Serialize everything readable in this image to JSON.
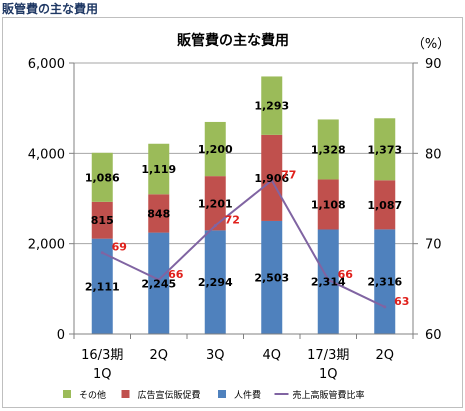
{
  "page_heading": "販管費の主な費用",
  "chart_data": {
    "type": "bar",
    "stacked": true,
    "title": "販管費の主な費用",
    "y2_unit": "（%）",
    "categories": [
      [
        "16/3期",
        "1Q"
      ],
      [
        "2Q"
      ],
      [
        "3Q"
      ],
      [
        "4Q"
      ],
      [
        "17/3期",
        "1Q"
      ],
      [
        "2Q"
      ]
    ],
    "series": [
      {
        "name": "人件費",
        "color": "#4f81bd",
        "values": [
          2111,
          2245,
          2294,
          2503,
          2314,
          2316
        ]
      },
      {
        "name": "広告宣伝販促費",
        "color": "#c0504d",
        "values": [
          815,
          848,
          1201,
          1906,
          1108,
          1087
        ]
      },
      {
        "name": "その他",
        "color": "#9bbb59",
        "values": [
          1086,
          1119,
          1200,
          1293,
          1328,
          1373
        ]
      }
    ],
    "line_series": {
      "name": "売上高販管費比率",
      "color": "#8064a2",
      "axis": "right",
      "values": [
        69,
        66,
        72,
        77,
        66,
        63
      ]
    },
    "legend_order": [
      "その他",
      "広告宣伝販促費",
      "人件費",
      "売上高販管費比率"
    ],
    "legend_position": "bottom",
    "ylim": [
      0,
      6000
    ],
    "yticks": [
      0,
      2000,
      4000,
      6000
    ],
    "ytick_labels": [
      "0",
      "2,000",
      "4,000",
      "6,000"
    ],
    "y2lim": [
      60,
      90
    ],
    "y2ticks": [
      60,
      70,
      80,
      90
    ],
    "grid": true
  }
}
